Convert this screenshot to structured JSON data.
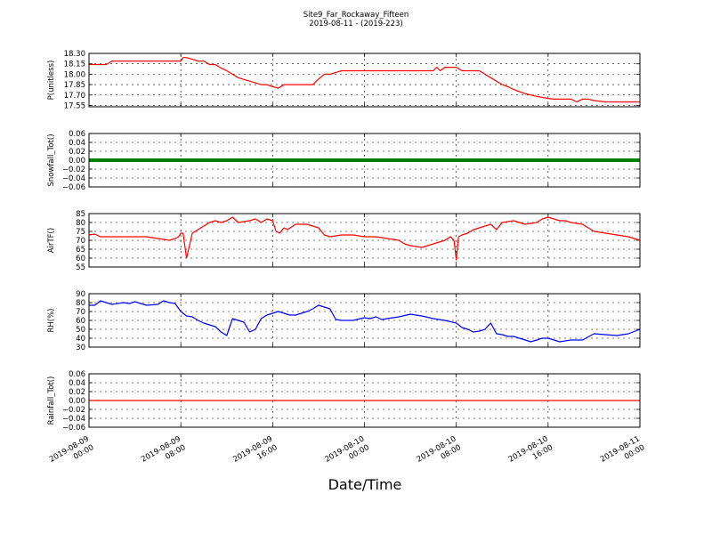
{
  "figure": {
    "title_line1": "Site9_Far_Rockaway_Fifteen",
    "title_line2": "2019-08-11 - (2019-223)",
    "xlabel": "Date/Time"
  },
  "chart_data": [
    {
      "type": "line",
      "ylabel": "P(unitless)",
      "ylim": [
        17.53,
        18.3
      ],
      "yticks": [
        "18.30",
        "18.15",
        "18.00",
        "17.85",
        "17.70",
        "17.55"
      ],
      "ytick_values": [
        18.3,
        18.15,
        18.0,
        17.85,
        17.7,
        17.55
      ],
      "grid": true,
      "series": [
        {
          "color": "#ff0000",
          "x": [
            0,
            1.5,
            2,
            6,
            6.2,
            8,
            8.2,
            8.5,
            9.5,
            10,
            10.5,
            11,
            11.5,
            12,
            12.5,
            13,
            14,
            15,
            15.5,
            16,
            16.5,
            17,
            18,
            19,
            19.5,
            20,
            20.5,
            21,
            22,
            23,
            24,
            25,
            26,
            27,
            28,
            29,
            30,
            30.3,
            30.6,
            31,
            32,
            32.5,
            34,
            34.5,
            35,
            35.5,
            36,
            36.5,
            37,
            37.5,
            38,
            39,
            40,
            40.5,
            42,
            42.5,
            43,
            43.5,
            44,
            45,
            46,
            47,
            48
          ],
          "y": [
            18.14,
            18.14,
            18.19,
            18.19,
            18.19,
            18.19,
            18.24,
            18.24,
            18.19,
            18.19,
            18.14,
            18.14,
            18.09,
            18.05,
            18.0,
            17.95,
            17.9,
            17.85,
            17.85,
            17.82,
            17.8,
            17.85,
            17.85,
            17.85,
            17.85,
            17.93,
            18.0,
            18.0,
            18.05,
            18.05,
            18.05,
            18.05,
            18.05,
            18.05,
            18.05,
            18.05,
            18.05,
            18.1,
            18.05,
            18.1,
            18.1,
            18.05,
            18.05,
            18.0,
            17.95,
            17.9,
            17.85,
            17.82,
            17.78,
            17.75,
            17.72,
            17.68,
            17.65,
            17.64,
            17.64,
            17.6,
            17.64,
            17.64,
            17.62,
            17.6,
            17.6,
            17.6,
            17.6
          ]
        }
      ]
    },
    {
      "type": "line",
      "ylabel": "Snowfall_Tot()",
      "ylim": [
        -0.06,
        0.06
      ],
      "yticks": [
        "0.06",
        "0.04",
        "0.02",
        "0.00",
        "−0.02",
        "−0.04",
        "−0.06"
      ],
      "ytick_values": [
        0.06,
        0.04,
        0.02,
        0.0,
        -0.02,
        -0.04,
        -0.06
      ],
      "grid": true,
      "series": [
        {
          "color": "#007f00",
          "marker": true,
          "x": [
            0,
            48
          ],
          "y": [
            0.0,
            0.0
          ]
        }
      ]
    },
    {
      "type": "line",
      "ylabel": "AirTF()",
      "ylim": [
        55,
        85
      ],
      "yticks": [
        "85",
        "80",
        "75",
        "70",
        "65",
        "60",
        "55"
      ],
      "ytick_values": [
        85,
        80,
        75,
        70,
        65,
        60,
        55
      ],
      "grid": true,
      "series": [
        {
          "color": "#ff0000",
          "x": [
            0,
            0.5,
            1,
            2,
            3,
            4,
            5,
            6,
            7,
            7.5,
            7.8,
            8,
            8.2,
            8.5,
            9,
            9.5,
            10,
            10.5,
            11,
            11.5,
            12,
            12.5,
            13,
            14,
            14.5,
            15,
            15.5,
            16,
            16.3,
            16.6,
            17,
            17.3,
            18,
            18.5,
            19,
            19.5,
            20,
            20.5,
            21,
            22,
            23,
            24,
            25,
            26,
            27,
            27.5,
            28,
            29,
            30,
            31,
            31.5,
            31.8,
            32,
            32.2,
            32.5,
            33,
            33.5,
            34,
            34.5,
            35,
            35.5,
            36,
            37,
            38,
            39,
            39.5,
            40,
            41,
            41.5,
            42,
            43,
            44,
            45,
            46,
            47,
            48
          ],
          "y": [
            73,
            73.5,
            72,
            72,
            72,
            72,
            72,
            71,
            70,
            71,
            72,
            74,
            74,
            60,
            74,
            76,
            78,
            80,
            81,
            80,
            81,
            83,
            80,
            81,
            82,
            80,
            82,
            81,
            75,
            74,
            77,
            76,
            79,
            79,
            79,
            78,
            77,
            73,
            72,
            73,
            73,
            72,
            72,
            71,
            70,
            68,
            67,
            66,
            68,
            70,
            72,
            70,
            59,
            72,
            73,
            74,
            76,
            77,
            78,
            79,
            76,
            80,
            81,
            79,
            80,
            82,
            83,
            81,
            81,
            80,
            79,
            75,
            74,
            73,
            72,
            70
          ]
        }
      ]
    },
    {
      "type": "line",
      "ylabel": "RH(%)",
      "ylim": [
        30,
        90
      ],
      "yticks": [
        "90",
        "80",
        "70",
        "60",
        "50",
        "40",
        "30"
      ],
      "ytick_values": [
        90,
        80,
        70,
        60,
        50,
        40,
        30
      ],
      "grid": true,
      "series": [
        {
          "color": "#0000ff",
          "x": [
            0,
            0.5,
            1,
            1.5,
            2,
            3,
            3.5,
            4,
            5,
            6,
            6.5,
            7,
            7.5,
            8,
            8.5,
            9,
            9.5,
            10,
            10.5,
            11,
            11.5,
            12,
            12.5,
            13,
            13.5,
            14,
            14.5,
            15,
            15.5,
            16,
            16.5,
            17,
            17.5,
            18,
            18.5,
            19,
            19.5,
            20,
            20.5,
            21,
            21.5,
            22,
            23,
            24,
            24.5,
            25,
            25.5,
            26,
            27,
            28,
            29,
            30,
            31,
            32,
            32.5,
            33,
            33.5,
            34,
            34.5,
            35,
            35.5,
            36,
            36.5,
            37,
            37.5,
            38,
            38.5,
            39,
            39.5,
            40,
            40.5,
            41,
            42,
            43,
            44,
            45,
            46,
            47,
            48
          ],
          "y": [
            77,
            77,
            82,
            80,
            78,
            80,
            79,
            81,
            77,
            78,
            82,
            80,
            79,
            70,
            65,
            64,
            60,
            57,
            55,
            53,
            47,
            43,
            62,
            60,
            58,
            47,
            50,
            62,
            66,
            68,
            70,
            68,
            66,
            66,
            68,
            70,
            73,
            77,
            75,
            73,
            61,
            60,
            60,
            63,
            62,
            64,
            61,
            62,
            64,
            67,
            65,
            62,
            60,
            57,
            52,
            50,
            47,
            48,
            50,
            57,
            45,
            44,
            42,
            42,
            40,
            38,
            36,
            38,
            40,
            40,
            38,
            36,
            38,
            38,
            45,
            44,
            43,
            45,
            50
          ]
        }
      ]
    },
    {
      "type": "line",
      "ylabel": "Rainfall_Tot()",
      "ylim": [
        -0.06,
        0.06
      ],
      "yticks": [
        "0.06",
        "0.04",
        "0.02",
        "0.00",
        "−0.02",
        "−0.04",
        "−0.06"
      ],
      "ytick_values": [
        0.06,
        0.04,
        0.02,
        0.0,
        -0.02,
        -0.04,
        -0.06
      ],
      "grid": true,
      "series": [
        {
          "color": "#ff0000",
          "x": [
            0,
            48
          ],
          "y": [
            0.0,
            0.0
          ]
        }
      ]
    }
  ],
  "x_axis": {
    "range": [
      0,
      48
    ],
    "tick_values": [
      0,
      8,
      16,
      24,
      32,
      40,
      48
    ],
    "tick_labels": [
      [
        "2019-08-09",
        "00:00"
      ],
      [
        "2019-08-09",
        "08:00"
      ],
      [
        "2019-08-09",
        "16:00"
      ],
      [
        "2019-08-10",
        "00:00"
      ],
      [
        "2019-08-10",
        "08:00"
      ],
      [
        "2019-08-10",
        "16:00"
      ],
      [
        "2019-08-11",
        "00:00"
      ]
    ]
  }
}
